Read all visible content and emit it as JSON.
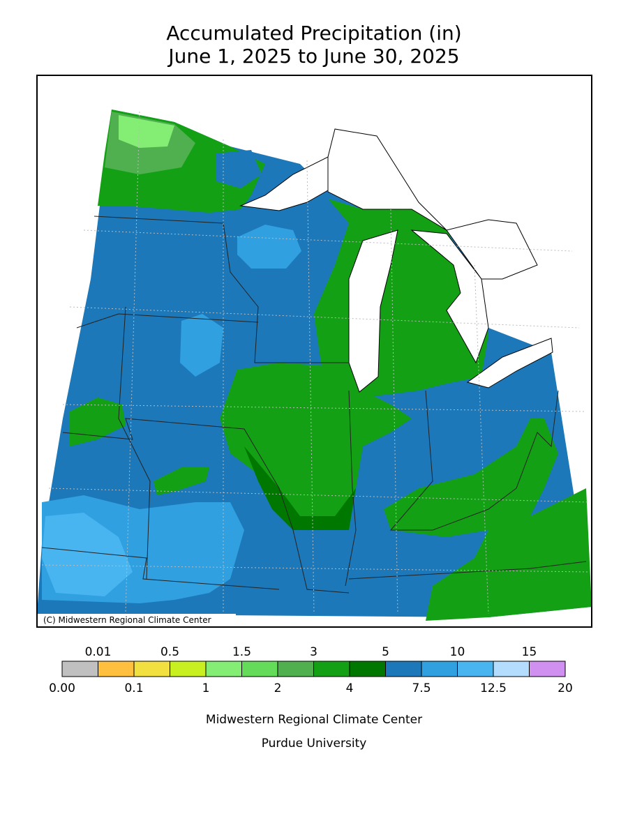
{
  "header": {
    "title": "Accumulated Precipitation (in)",
    "subtitle": "June 1, 2025 to June 30, 2025"
  },
  "map": {
    "credit": "(C) Midwestern Regional Climate Center"
  },
  "legend": {
    "boundaries": [
      "0.00",
      "0.01",
      "0.1",
      "0.5",
      "1",
      "1.5",
      "2",
      "3",
      "4",
      "5",
      "7.5",
      "10",
      "12.5",
      "15",
      "20"
    ],
    "colors": [
      "#c0c0c0",
      "#ffc040",
      "#f2e040",
      "#c8f020",
      "#84ee74",
      "#64dc5a",
      "#50b050",
      "#14a014",
      "#007800",
      "#1c78b8",
      "#30a0e0",
      "#48b4f0",
      "#b4dcfc",
      "#d090f0"
    ]
  },
  "footer": {
    "line1": "Midwestern Regional Climate Center",
    "line2": "Purdue University"
  }
}
